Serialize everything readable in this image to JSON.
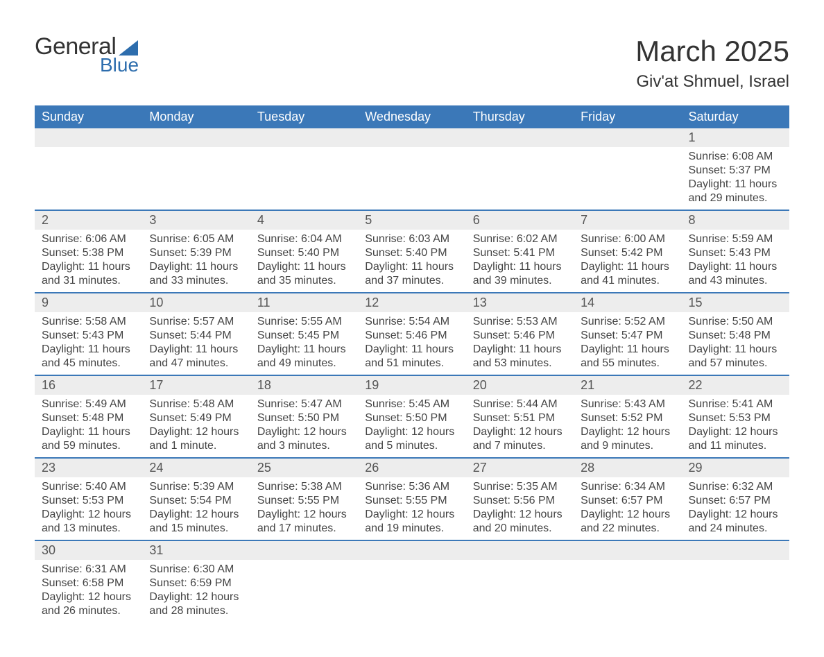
{
  "logo": {
    "word1": "General",
    "word2": "Blue"
  },
  "title": "March 2025",
  "location": "Giv'at Shmuel, Israel",
  "colors": {
    "header_bg": "#3b78b8",
    "header_text": "#ffffff",
    "daynum_bg": "#ededed",
    "row_border": "#3b78b8",
    "text": "#444444",
    "logo_accent": "#2d6dad"
  },
  "fonts": {
    "title_size": 42,
    "location_size": 24,
    "th_size": 18,
    "cell_size": 16
  },
  "weekdays": [
    "Sunday",
    "Monday",
    "Tuesday",
    "Wednesday",
    "Thursday",
    "Friday",
    "Saturday"
  ],
  "weeks": [
    [
      null,
      null,
      null,
      null,
      null,
      null,
      {
        "n": "1",
        "sr": "Sunrise: 6:08 AM",
        "ss": "Sunset: 5:37 PM",
        "d1": "Daylight: 11 hours",
        "d2": "and 29 minutes."
      }
    ],
    [
      {
        "n": "2",
        "sr": "Sunrise: 6:06 AM",
        "ss": "Sunset: 5:38 PM",
        "d1": "Daylight: 11 hours",
        "d2": "and 31 minutes."
      },
      {
        "n": "3",
        "sr": "Sunrise: 6:05 AM",
        "ss": "Sunset: 5:39 PM",
        "d1": "Daylight: 11 hours",
        "d2": "and 33 minutes."
      },
      {
        "n": "4",
        "sr": "Sunrise: 6:04 AM",
        "ss": "Sunset: 5:40 PM",
        "d1": "Daylight: 11 hours",
        "d2": "and 35 minutes."
      },
      {
        "n": "5",
        "sr": "Sunrise: 6:03 AM",
        "ss": "Sunset: 5:40 PM",
        "d1": "Daylight: 11 hours",
        "d2": "and 37 minutes."
      },
      {
        "n": "6",
        "sr": "Sunrise: 6:02 AM",
        "ss": "Sunset: 5:41 PM",
        "d1": "Daylight: 11 hours",
        "d2": "and 39 minutes."
      },
      {
        "n": "7",
        "sr": "Sunrise: 6:00 AM",
        "ss": "Sunset: 5:42 PM",
        "d1": "Daylight: 11 hours",
        "d2": "and 41 minutes."
      },
      {
        "n": "8",
        "sr": "Sunrise: 5:59 AM",
        "ss": "Sunset: 5:43 PM",
        "d1": "Daylight: 11 hours",
        "d2": "and 43 minutes."
      }
    ],
    [
      {
        "n": "9",
        "sr": "Sunrise: 5:58 AM",
        "ss": "Sunset: 5:43 PM",
        "d1": "Daylight: 11 hours",
        "d2": "and 45 minutes."
      },
      {
        "n": "10",
        "sr": "Sunrise: 5:57 AM",
        "ss": "Sunset: 5:44 PM",
        "d1": "Daylight: 11 hours",
        "d2": "and 47 minutes."
      },
      {
        "n": "11",
        "sr": "Sunrise: 5:55 AM",
        "ss": "Sunset: 5:45 PM",
        "d1": "Daylight: 11 hours",
        "d2": "and 49 minutes."
      },
      {
        "n": "12",
        "sr": "Sunrise: 5:54 AM",
        "ss": "Sunset: 5:46 PM",
        "d1": "Daylight: 11 hours",
        "d2": "and 51 minutes."
      },
      {
        "n": "13",
        "sr": "Sunrise: 5:53 AM",
        "ss": "Sunset: 5:46 PM",
        "d1": "Daylight: 11 hours",
        "d2": "and 53 minutes."
      },
      {
        "n": "14",
        "sr": "Sunrise: 5:52 AM",
        "ss": "Sunset: 5:47 PM",
        "d1": "Daylight: 11 hours",
        "d2": "and 55 minutes."
      },
      {
        "n": "15",
        "sr": "Sunrise: 5:50 AM",
        "ss": "Sunset: 5:48 PM",
        "d1": "Daylight: 11 hours",
        "d2": "and 57 minutes."
      }
    ],
    [
      {
        "n": "16",
        "sr": "Sunrise: 5:49 AM",
        "ss": "Sunset: 5:48 PM",
        "d1": "Daylight: 11 hours",
        "d2": "and 59 minutes."
      },
      {
        "n": "17",
        "sr": "Sunrise: 5:48 AM",
        "ss": "Sunset: 5:49 PM",
        "d1": "Daylight: 12 hours",
        "d2": "and 1 minute."
      },
      {
        "n": "18",
        "sr": "Sunrise: 5:47 AM",
        "ss": "Sunset: 5:50 PM",
        "d1": "Daylight: 12 hours",
        "d2": "and 3 minutes."
      },
      {
        "n": "19",
        "sr": "Sunrise: 5:45 AM",
        "ss": "Sunset: 5:50 PM",
        "d1": "Daylight: 12 hours",
        "d2": "and 5 minutes."
      },
      {
        "n": "20",
        "sr": "Sunrise: 5:44 AM",
        "ss": "Sunset: 5:51 PM",
        "d1": "Daylight: 12 hours",
        "d2": "and 7 minutes."
      },
      {
        "n": "21",
        "sr": "Sunrise: 5:43 AM",
        "ss": "Sunset: 5:52 PM",
        "d1": "Daylight: 12 hours",
        "d2": "and 9 minutes."
      },
      {
        "n": "22",
        "sr": "Sunrise: 5:41 AM",
        "ss": "Sunset: 5:53 PM",
        "d1": "Daylight: 12 hours",
        "d2": "and 11 minutes."
      }
    ],
    [
      {
        "n": "23",
        "sr": "Sunrise: 5:40 AM",
        "ss": "Sunset: 5:53 PM",
        "d1": "Daylight: 12 hours",
        "d2": "and 13 minutes."
      },
      {
        "n": "24",
        "sr": "Sunrise: 5:39 AM",
        "ss": "Sunset: 5:54 PM",
        "d1": "Daylight: 12 hours",
        "d2": "and 15 minutes."
      },
      {
        "n": "25",
        "sr": "Sunrise: 5:38 AM",
        "ss": "Sunset: 5:55 PM",
        "d1": "Daylight: 12 hours",
        "d2": "and 17 minutes."
      },
      {
        "n": "26",
        "sr": "Sunrise: 5:36 AM",
        "ss": "Sunset: 5:55 PM",
        "d1": "Daylight: 12 hours",
        "d2": "and 19 minutes."
      },
      {
        "n": "27",
        "sr": "Sunrise: 5:35 AM",
        "ss": "Sunset: 5:56 PM",
        "d1": "Daylight: 12 hours",
        "d2": "and 20 minutes."
      },
      {
        "n": "28",
        "sr": "Sunrise: 6:34 AM",
        "ss": "Sunset: 6:57 PM",
        "d1": "Daylight: 12 hours",
        "d2": "and 22 minutes."
      },
      {
        "n": "29",
        "sr": "Sunrise: 6:32 AM",
        "ss": "Sunset: 6:57 PM",
        "d1": "Daylight: 12 hours",
        "d2": "and 24 minutes."
      }
    ],
    [
      {
        "n": "30",
        "sr": "Sunrise: 6:31 AM",
        "ss": "Sunset: 6:58 PM",
        "d1": "Daylight: 12 hours",
        "d2": "and 26 minutes."
      },
      {
        "n": "31",
        "sr": "Sunrise: 6:30 AM",
        "ss": "Sunset: 6:59 PM",
        "d1": "Daylight: 12 hours",
        "d2": "and 28 minutes."
      },
      null,
      null,
      null,
      null,
      null
    ]
  ]
}
